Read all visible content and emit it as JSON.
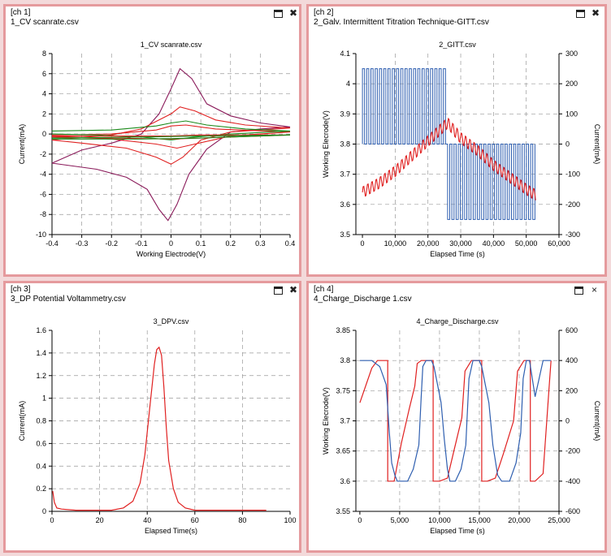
{
  "colors": {
    "frame": "#e59a9d",
    "red": "#e02020",
    "blue": "#2f5fb0",
    "green": "#1a8a1a",
    "purple": "#8a1a5a"
  },
  "panels": [
    {
      "tag": "[ch 1]",
      "file": "1_CV  scanrate.csv",
      "close_glyph": "✖"
    },
    {
      "tag": "[ch 2]",
      "file": "2_Galv. Intermittent Titration Technique-GITT.csv",
      "close_glyph": "✖"
    },
    {
      "tag": "[ch 3]",
      "file": "3_DP  Potential Voltammetry.csv",
      "close_glyph": "✖"
    },
    {
      "tag": "[ch 4]",
      "file": "4_Charge_Discharge 1.csv",
      "close_glyph": "×"
    }
  ],
  "chart_data": [
    {
      "type": "line",
      "title": "1_CV  scanrate.csv",
      "xlabel": "Working Electrode(V)",
      "ylabel": "Current(mA)",
      "xlim": [
        -0.4,
        0.4
      ],
      "ylim": [
        -10,
        8
      ],
      "x_ticks": [
        "-0.4",
        "-0.3",
        "-0.2",
        "-0.1",
        "0",
        "0.1",
        "0.2",
        "0.3",
        "0.4"
      ],
      "y_ticks": [
        "8",
        "6",
        "4",
        "2",
        "0",
        "-2",
        "-4",
        "-6",
        "-8",
        "-10"
      ],
      "series": [
        {
          "color": "#8a1a5a",
          "points": [
            [
              -0.4,
              -2.9
            ],
            [
              -0.3,
              -1.6
            ],
            [
              -0.2,
              -0.9
            ],
            [
              -0.1,
              0.0
            ],
            [
              -0.04,
              2.0
            ],
            [
              0.0,
              4.5
            ],
            [
              0.03,
              6.5
            ],
            [
              0.07,
              5.5
            ],
            [
              0.12,
              3.0
            ],
            [
              0.2,
              1.8
            ],
            [
              0.3,
              1.1
            ],
            [
              0.4,
              0.7
            ],
            [
              0.3,
              0.5
            ],
            [
              0.2,
              0.2
            ],
            [
              0.12,
              -1.5
            ],
            [
              0.06,
              -4.0
            ],
            [
              0.02,
              -7.0
            ],
            [
              -0.01,
              -8.6
            ],
            [
              -0.04,
              -7.5
            ],
            [
              -0.08,
              -5.5
            ],
            [
              -0.15,
              -4.3
            ],
            [
              -0.25,
              -3.5
            ],
            [
              -0.4,
              -2.9
            ]
          ]
        },
        {
          "color": "#e02020",
          "points": [
            [
              -0.4,
              -0.6
            ],
            [
              -0.2,
              -0.1
            ],
            [
              -0.1,
              0.5
            ],
            [
              0.0,
              2.0
            ],
            [
              0.03,
              2.7
            ],
            [
              0.08,
              2.3
            ],
            [
              0.15,
              1.4
            ],
            [
              0.25,
              0.9
            ],
            [
              0.4,
              0.6
            ],
            [
              0.2,
              0.2
            ],
            [
              0.1,
              -0.6
            ],
            [
              0.04,
              -2.3
            ],
            [
              0.0,
              -3.0
            ],
            [
              -0.05,
              -2.3
            ],
            [
              -0.15,
              -1.4
            ],
            [
              -0.3,
              -0.9
            ],
            [
              -0.4,
              -0.6
            ]
          ]
        },
        {
          "color": "#e02020",
          "points": [
            [
              -0.4,
              -0.1
            ],
            [
              -0.2,
              0.0
            ],
            [
              -0.05,
              0.4
            ],
            [
              0.0,
              0.8
            ],
            [
              0.05,
              0.9
            ],
            [
              0.15,
              0.5
            ],
            [
              0.4,
              0.2
            ],
            [
              0.2,
              -0.2
            ],
            [
              0.08,
              -1.0
            ],
            [
              0.02,
              -1.4
            ],
            [
              -0.05,
              -1.0
            ],
            [
              -0.2,
              -0.5
            ],
            [
              -0.4,
              -0.2
            ]
          ]
        },
        {
          "color": "#1a8a1a",
          "points": [
            [
              -0.4,
              0.3
            ],
            [
              -0.2,
              0.4
            ],
            [
              -0.05,
              0.8
            ],
            [
              0.0,
              1.1
            ],
            [
              0.05,
              1.3
            ],
            [
              0.12,
              0.9
            ],
            [
              0.25,
              0.5
            ],
            [
              0.4,
              0.3
            ],
            [
              0.2,
              0.0
            ],
            [
              0.08,
              -0.3
            ],
            [
              0.0,
              -0.6
            ],
            [
              -0.1,
              -0.3
            ],
            [
              -0.25,
              -0.1
            ],
            [
              -0.4,
              0.0
            ]
          ]
        },
        {
          "color": "#e02020",
          "points": [
            [
              -0.4,
              -0.2
            ],
            [
              -0.2,
              -0.2
            ],
            [
              0.0,
              -0.2
            ],
            [
              0.1,
              -0.1
            ],
            [
              0.2,
              -0.1
            ],
            [
              0.4,
              -0.1
            ],
            [
              0.2,
              -0.3
            ],
            [
              0.0,
              -0.5
            ],
            [
              -0.2,
              -0.4
            ],
            [
              -0.4,
              -0.3
            ]
          ]
        },
        {
          "color": "#1a8a1a",
          "points": [
            [
              -0.4,
              -0.4
            ],
            [
              -0.1,
              -0.3
            ],
            [
              0.1,
              -0.2
            ],
            [
              0.4,
              -0.1
            ],
            [
              0.1,
              -0.4
            ],
            [
              -0.1,
              -0.5
            ],
            [
              -0.4,
              -0.5
            ]
          ]
        }
      ]
    },
    {
      "type": "line",
      "title": "2_GITT.csv",
      "xlabel": "Elapsed Time (s)",
      "ylabel": "Working Elecrode(V)",
      "y2label": "Current(mA)",
      "xlim": [
        -2000,
        60000
      ],
      "ylim": [
        3.5,
        4.1
      ],
      "y2lim": [
        -300,
        300
      ],
      "x_ticks": [
        "0",
        "10,000",
        "20,000",
        "30,000",
        "40,000",
        "50,000",
        "60,000"
      ],
      "y_ticks": [
        "4.1",
        "4",
        "3.9",
        "3.8",
        "3.7",
        "3.6",
        "3.5"
      ],
      "y2_ticks": [
        "300",
        "200",
        "100",
        "0",
        "-100",
        "-200",
        "-300"
      ],
      "current_pulses": {
        "charge_end_s": 26000,
        "end_s": 53000,
        "period_s": 1300,
        "on_mA": 250,
        "charge_off_mA": 0,
        "discharge_on_mA": -250
      },
      "voltage_envelope": [
        [
          0,
          3.64
        ],
        [
          5000,
          3.67
        ],
        [
          10000,
          3.71
        ],
        [
          15000,
          3.76
        ],
        [
          20000,
          3.81
        ],
        [
          26000,
          3.87
        ],
        [
          30000,
          3.82
        ],
        [
          35000,
          3.78
        ],
        [
          40000,
          3.73
        ],
        [
          45000,
          3.69
        ],
        [
          50000,
          3.65
        ],
        [
          53000,
          3.63
        ]
      ],
      "voltage_ripple_V": 0.02
    },
    {
      "type": "line",
      "title": "3_DPV.csv",
      "xlabel": "Elapsed Time(s)",
      "ylabel": "Current(mA)",
      "xlim": [
        0,
        100
      ],
      "ylim": [
        0,
        1.6
      ],
      "x_ticks": [
        "0",
        "20",
        "40",
        "60",
        "80",
        "100"
      ],
      "y_ticks": [
        "1.6",
        "1.4",
        "1.2",
        "1",
        "0.8",
        "0.6",
        "0.4",
        "0.2",
        "0"
      ],
      "series": [
        {
          "color": "#e02020",
          "points": [
            [
              0.3,
              0.18
            ],
            [
              1,
              0.08
            ],
            [
              2,
              0.03
            ],
            [
              4,
              0.02
            ],
            [
              10,
              0.01
            ],
            [
              25,
              0.01
            ],
            [
              30,
              0.03
            ],
            [
              34,
              0.09
            ],
            [
              37,
              0.25
            ],
            [
              39,
              0.5
            ],
            [
              41,
              0.9
            ],
            [
              43,
              1.3
            ],
            [
              44,
              1.43
            ],
            [
              45,
              1.45
            ],
            [
              46,
              1.38
            ],
            [
              47,
              1.1
            ],
            [
              48,
              0.75
            ],
            [
              49,
              0.45
            ],
            [
              51,
              0.2
            ],
            [
              53,
              0.08
            ],
            [
              56,
              0.03
            ],
            [
              60,
              0.01
            ],
            [
              90,
              0.01
            ]
          ]
        }
      ]
    },
    {
      "type": "line",
      "title": "4_Charge_Discharge.csv",
      "xlabel": "Elapsed Time (s)",
      "ylabel": "Working Elecrode(V)",
      "y2label": "Current(mA)",
      "xlim": [
        -500,
        25000
      ],
      "ylim": [
        3.55,
        3.85
      ],
      "y2lim": [
        -600,
        600
      ],
      "x_ticks": [
        "0",
        "5,000",
        "10,000",
        "15,000",
        "20,000",
        "25,000"
      ],
      "y_ticks": [
        "3.85",
        "3.8",
        "3.75",
        "3.7",
        "3.65",
        "3.6",
        "3.55"
      ],
      "y2_ticks": [
        "600",
        "400",
        "200",
        "0",
        "-200",
        "-400",
        "-600"
      ],
      "series": [
        {
          "name": "current",
          "color": "#e02020",
          "axis": "right",
          "points": [
            [
              0,
              120
            ],
            [
              1500,
              350
            ],
            [
              2200,
              400
            ],
            [
              3500,
              400
            ],
            [
              3500,
              -400
            ],
            [
              4300,
              -400
            ],
            [
              5200,
              -150
            ],
            [
              6200,
              80
            ],
            [
              6900,
              230
            ],
            [
              7200,
              380
            ],
            [
              7700,
              400
            ],
            [
              9200,
              400
            ],
            [
              9200,
              -400
            ],
            [
              10000,
              -400
            ],
            [
              11000,
              -380
            ],
            [
              11800,
              -200
            ],
            [
              12800,
              20
            ],
            [
              13200,
              330
            ],
            [
              14000,
              400
            ],
            [
              15300,
              400
            ],
            [
              15300,
              -400
            ],
            [
              16000,
              -400
            ],
            [
              17000,
              -380
            ],
            [
              18000,
              -220
            ],
            [
              19300,
              0
            ],
            [
              19800,
              330
            ],
            [
              20600,
              400
            ],
            [
              21400,
              400
            ],
            [
              21400,
              -400
            ],
            [
              22000,
              -400
            ],
            [
              23000,
              -350
            ],
            [
              23800,
              250
            ],
            [
              24000,
              400
            ]
          ]
        },
        {
          "name": "voltage",
          "color": "#2f5fb0",
          "axis": "left",
          "points": [
            [
              0,
              3.8
            ],
            [
              1500,
              3.8
            ],
            [
              2500,
              3.79
            ],
            [
              3300,
              3.76
            ],
            [
              3700,
              3.68
            ],
            [
              4000,
              3.63
            ],
            [
              4400,
              3.61
            ],
            [
              4700,
              3.6
            ],
            [
              6000,
              3.6
            ],
            [
              6700,
              3.62
            ],
            [
              7400,
              3.66
            ],
            [
              7700,
              3.74
            ],
            [
              7900,
              3.79
            ],
            [
              8300,
              3.8
            ],
            [
              9000,
              3.8
            ],
            [
              9300,
              3.79
            ],
            [
              10200,
              3.73
            ],
            [
              10600,
              3.67
            ],
            [
              11000,
              3.62
            ],
            [
              11300,
              3.6
            ],
            [
              12000,
              3.6
            ],
            [
              12700,
              3.62
            ],
            [
              13300,
              3.66
            ],
            [
              13700,
              3.77
            ],
            [
              14200,
              3.8
            ],
            [
              15000,
              3.8
            ],
            [
              15300,
              3.79
            ],
            [
              16200,
              3.73
            ],
            [
              16700,
              3.66
            ],
            [
              17300,
              3.61
            ],
            [
              17800,
              3.6
            ],
            [
              18800,
              3.6
            ],
            [
              19600,
              3.63
            ],
            [
              20200,
              3.68
            ],
            [
              20500,
              3.77
            ],
            [
              20900,
              3.8
            ],
            [
              21300,
              3.8
            ],
            [
              22000,
              3.74
            ],
            [
              23000,
              3.8
            ],
            [
              24000,
              3.8
            ]
          ]
        }
      ]
    }
  ]
}
